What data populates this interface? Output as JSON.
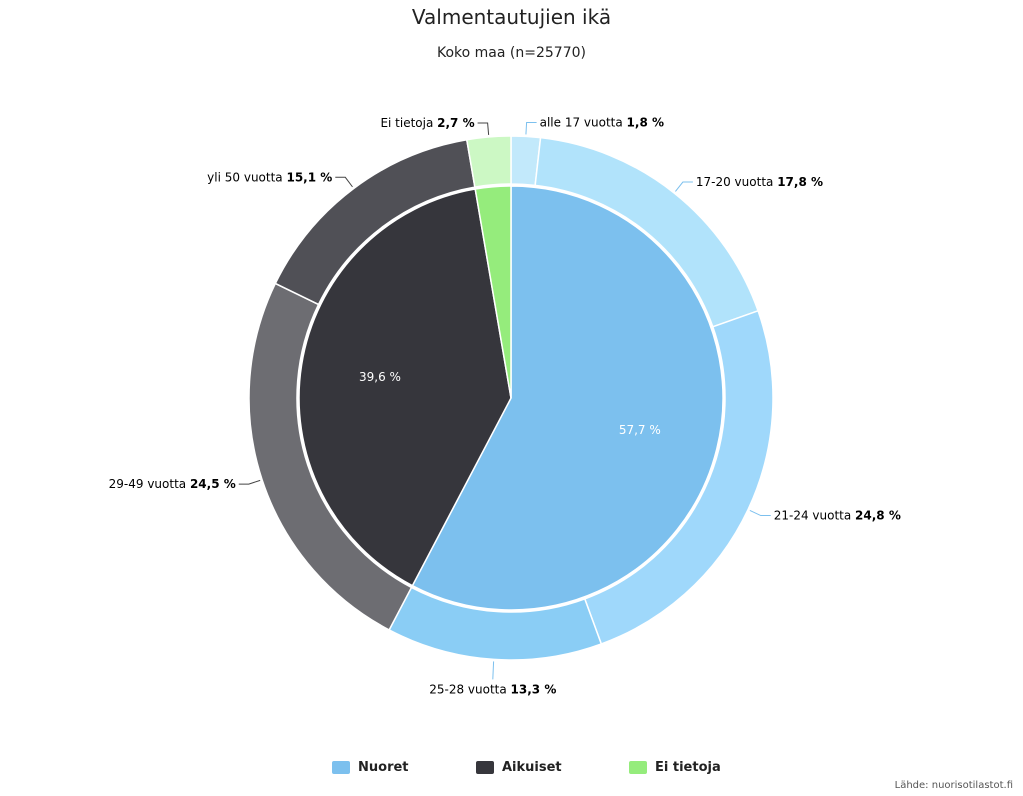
{
  "title": "Valmentautujien ikä",
  "subtitle": "Koko maa (n=25770)",
  "credit": "Lähde: nuorisotilastot.fi",
  "chart_data": {
    "type": "pie",
    "variant": "nested-donut",
    "start_angle_deg": 0,
    "direction": "clockwise",
    "inner": [
      {
        "name": "Nuoret",
        "value": 57.7,
        "label": "57,7 %",
        "color": "#7cc0ee"
      },
      {
        "name": "Aikuiset",
        "value": 39.6,
        "label": "39,6 %",
        "color": "#36363c"
      },
      {
        "name": "Ei tietoja",
        "value": 2.7,
        "label": "",
        "color": "#95ec7c"
      }
    ],
    "outer": [
      {
        "name": "alle 17 vuotta",
        "value": 1.8,
        "pct_label": "1,8 %",
        "color": "#c2e9fb",
        "label_side": "right"
      },
      {
        "name": "17-20 vuotta",
        "value": 17.8,
        "pct_label": "17,8 %",
        "color": "#b1e3fb",
        "label_side": "right"
      },
      {
        "name": "21-24 vuotta",
        "value": 24.8,
        "pct_label": "24,8 %",
        "color": "#9fd8fb",
        "label_side": "right"
      },
      {
        "name": "25-28 vuotta",
        "value": 13.3,
        "pct_label": "13,3 %",
        "color": "#8acdf5",
        "label_side": "below"
      },
      {
        "name": "29-49 vuotta",
        "value": 24.5,
        "pct_label": "24,5 %",
        "color": "#6d6d72",
        "label_side": "left"
      },
      {
        "name": "yli 50 vuotta",
        "value": 15.1,
        "pct_label": "15,1 %",
        "color": "#505056",
        "label_side": "left"
      },
      {
        "name": "Ei tietoja",
        "value": 2.7,
        "pct_label": "2,7 %",
        "color": "#ccf8c4",
        "label_side": "left"
      }
    ],
    "legend": {
      "position": "bottom",
      "items": [
        {
          "name": "Nuoret",
          "color": "#7cc0ee"
        },
        {
          "name": "Aikuiset",
          "color": "#36363c"
        },
        {
          "name": "Ei tietoja",
          "color": "#95ec7c"
        }
      ]
    }
  }
}
